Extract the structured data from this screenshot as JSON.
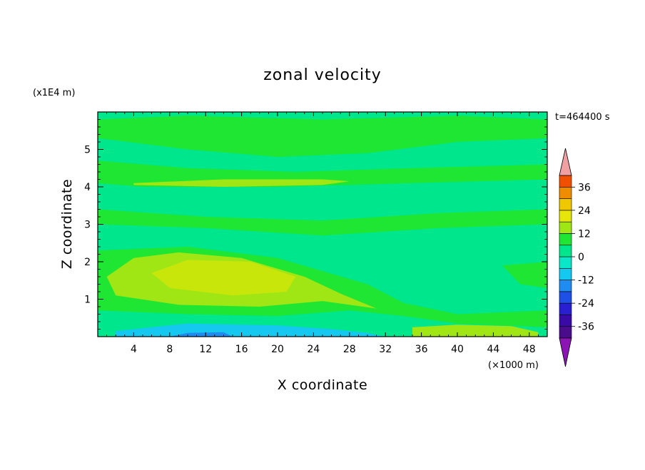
{
  "chart_data": {
    "type": "heatmap",
    "title": "zonal velocity",
    "xlabel": "X coordinate",
    "ylabel": "Z coordinate",
    "x_unit_label": "(×1000 m)",
    "y_unit_label": "(x1E4 m)",
    "time_label": "t=464400 s",
    "xlim": [
      0,
      50
    ],
    "ylim": [
      0,
      6
    ],
    "x_ticks": [
      "4",
      "8",
      "12",
      "16",
      "20",
      "24",
      "28",
      "32",
      "36",
      "40",
      "44",
      "48"
    ],
    "x_tick_values": [
      4,
      8,
      12,
      16,
      20,
      24,
      28,
      32,
      36,
      40,
      44,
      48
    ],
    "y_ticks": [
      "1",
      "2",
      "3",
      "4",
      "5"
    ],
    "y_tick_values": [
      1,
      2,
      3,
      4,
      5
    ],
    "colorbar": {
      "levels": [
        -42,
        -36,
        -30,
        -24,
        -18,
        -12,
        -6,
        0,
        6,
        12,
        18,
        24,
        30,
        36,
        42
      ],
      "colors": [
        "#4b0c8c",
        "#3a0aa6",
        "#2a1fd0",
        "#1e50e6",
        "#1e8cf0",
        "#14c8f0",
        "#0ae6c8",
        "#00e68c",
        "#1ee632",
        "#a0e614",
        "#e6e60a",
        "#f0c800",
        "#f08c00",
        "#f05000",
        "#e61e1e"
      ],
      "under_color": "#8c14b4",
      "over_color": "#f0a0a0",
      "labels": [
        "36",
        "24",
        "12",
        "0",
        "-12",
        "-24",
        "-36"
      ],
      "label_values": [
        36,
        24,
        12,
        0,
        -12,
        -24,
        -36
      ]
    },
    "field": {
      "background": "#00e68c",
      "regions": [
        {
          "name": "upper-positive-band-1",
          "value": 3,
          "color": "#1ee632",
          "pts": [
            [
              0,
              5.3
            ],
            [
              10,
              5.0
            ],
            [
              20,
              4.8
            ],
            [
              30,
              4.9
            ],
            [
              40,
              5.2
            ],
            [
              50,
              5.3
            ],
            [
              50,
              5.8
            ],
            [
              40,
              5.9
            ],
            [
              25,
              5.8
            ],
            [
              10,
              5.9
            ],
            [
              0,
              5.8
            ]
          ]
        },
        {
          "name": "upper-positive-band-2",
          "value": 3,
          "color": "#1ee632",
          "pts": [
            [
              0,
              4.7
            ],
            [
              10,
              4.5
            ],
            [
              22,
              4.4
            ],
            [
              35,
              4.5
            ],
            [
              50,
              4.6
            ],
            [
              50,
              4.2
            ],
            [
              35,
              4.1
            ],
            [
              20,
              4.0
            ],
            [
              5,
              4.0
            ],
            [
              0,
              4.1
            ]
          ]
        },
        {
          "name": "mid-positive-band",
          "value": 3,
          "color": "#1ee632",
          "pts": [
            [
              0,
              3.4
            ],
            [
              12,
              3.2
            ],
            [
              25,
              3.1
            ],
            [
              38,
              3.3
            ],
            [
              50,
              3.4
            ],
            [
              50,
              3.0
            ],
            [
              38,
              2.9
            ],
            [
              25,
              2.7
            ],
            [
              12,
              2.9
            ],
            [
              0,
              3.0
            ]
          ]
        },
        {
          "name": "lower-positive-band",
          "value": 3,
          "color": "#1ee632",
          "pts": [
            [
              0,
              2.3
            ],
            [
              10,
              2.4
            ],
            [
              20,
              2.1
            ],
            [
              30,
              1.4
            ],
            [
              34,
              0.9
            ],
            [
              40,
              0.6
            ],
            [
              50,
              0.7
            ],
            [
              50,
              0.25
            ],
            [
              40,
              0.35
            ],
            [
              34,
              0.55
            ],
            [
              28,
              0.7
            ],
            [
              20,
              0.55
            ],
            [
              10,
              0.6
            ],
            [
              0,
              0.7
            ]
          ]
        },
        {
          "name": "right-positive-patch",
          "value": 3,
          "color": "#1ee632",
          "pts": [
            [
              45,
              1.9
            ],
            [
              50,
              2.0
            ],
            [
              50,
              1.3
            ],
            [
              47,
              1.4
            ]
          ]
        },
        {
          "name": "mid-yellow-streak",
          "value": 9,
          "color": "#a0e614",
          "pts": [
            [
              4,
              4.1
            ],
            [
              14,
              4.2
            ],
            [
              25,
              4.2
            ],
            [
              28,
              4.15
            ],
            [
              25,
              4.05
            ],
            [
              14,
              4.0
            ],
            [
              4,
              4.05
            ]
          ]
        },
        {
          "name": "core-positive-max",
          "value": 12,
          "color": "#a0e614",
          "pts": [
            [
              1,
              1.6
            ],
            [
              4,
              2.1
            ],
            [
              9,
              2.25
            ],
            [
              16,
              2.1
            ],
            [
              23,
              1.6
            ],
            [
              27,
              1.15
            ],
            [
              31,
              0.75
            ],
            [
              25,
              0.95
            ],
            [
              18,
              0.8
            ],
            [
              9,
              0.85
            ],
            [
              2,
              1.1
            ]
          ]
        },
        {
          "name": "core-positive-inner",
          "value": 14,
          "color": "#c8e60a",
          "pts": [
            [
              6,
              1.7
            ],
            [
              10,
              2.05
            ],
            [
              17,
              2.0
            ],
            [
              22,
              1.6
            ],
            [
              21,
              1.2
            ],
            [
              15,
              1.1
            ],
            [
              8,
              1.3
            ]
          ]
        },
        {
          "name": "surface-positive-right",
          "value": 12,
          "color": "#a0e614",
          "pts": [
            [
              35,
              0.0
            ],
            [
              35,
              0.25
            ],
            [
              40,
              0.32
            ],
            [
              46,
              0.28
            ],
            [
              49,
              0.12
            ],
            [
              49,
              0.0
            ]
          ]
        },
        {
          "name": "surface-negative-left",
          "value": -12,
          "color": "#14c8f0",
          "pts": [
            [
              2,
              0.0
            ],
            [
              2,
              0.15
            ],
            [
              10,
              0.35
            ],
            [
              20,
              0.3
            ],
            [
              26,
              0.2
            ],
            [
              30,
              0.1
            ],
            [
              32,
              0.0
            ]
          ]
        },
        {
          "name": "surface-negative-core",
          "value": -18,
          "color": "#1e8cf0",
          "pts": [
            [
              8,
              0.0
            ],
            [
              10,
              0.1
            ],
            [
              14,
              0.12
            ],
            [
              15,
              0.0
            ]
          ]
        }
      ]
    }
  }
}
